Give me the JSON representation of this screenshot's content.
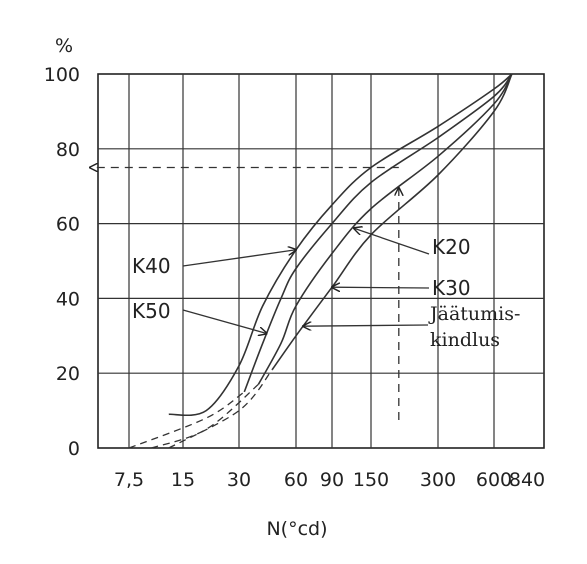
{
  "chart_data": {
    "type": "line",
    "title": "",
    "xlabel": "N(°cd)",
    "ylabel": "%",
    "x_tick_labels": [
      "7,5",
      "15",
      "30",
      "60",
      "90",
      "150",
      "300",
      "600",
      "840"
    ],
    "y_ticks": [
      0,
      20,
      40,
      60,
      80,
      100
    ],
    "ylim": [
      0,
      100
    ],
    "grid": true,
    "series": [
      {
        "name": "K40",
        "solid": [
          [
            12.5,
            9
          ],
          [
            20,
            10
          ],
          [
            30,
            22
          ],
          [
            40,
            38
          ],
          [
            60,
            53
          ],
          [
            90,
            65
          ],
          [
            150,
            75
          ],
          [
            300,
            86
          ],
          [
            600,
            96
          ],
          [
            720,
            100
          ]
        ],
        "dashed": []
      },
      {
        "name": "K50",
        "solid": [
          [
            32,
            15
          ],
          [
            40,
            28
          ],
          [
            50,
            40
          ],
          [
            60,
            48
          ],
          [
            90,
            60
          ],
          [
            150,
            71
          ],
          [
            300,
            83
          ],
          [
            600,
            94
          ],
          [
            720,
            100
          ]
        ],
        "dashed": [
          [
            7.5,
            0
          ],
          [
            20,
            8
          ],
          [
            32,
            15
          ]
        ]
      },
      {
        "name": "K20",
        "solid": [
          [
            38,
            17
          ],
          [
            50,
            28
          ],
          [
            60,
            38
          ],
          [
            90,
            52
          ],
          [
            150,
            64
          ],
          [
            300,
            78
          ],
          [
            600,
            92
          ],
          [
            720,
            100
          ]
        ],
        "dashed": [
          [
            10,
            0
          ],
          [
            20,
            5
          ],
          [
            38,
            17
          ]
        ]
      },
      {
        "name": "K30",
        "solid": [
          [
            45,
            21
          ],
          [
            60,
            30
          ],
          [
            90,
            43
          ],
          [
            150,
            57
          ],
          [
            300,
            73
          ],
          [
            600,
            90
          ],
          [
            720,
            100
          ]
        ],
        "dashed": [
          [
            12.5,
            0
          ],
          [
            30,
            10
          ],
          [
            45,
            21
          ]
        ]
      }
    ],
    "annotations": [
      {
        "id": "k40",
        "lines": [
          "K40"
        ],
        "target_series": "K40",
        "target_x": 60
      },
      {
        "id": "k50",
        "lines": [
          "K50"
        ],
        "target_series": "K50",
        "target_x": 42
      },
      {
        "id": "k20",
        "lines": [
          "K20"
        ],
        "target_series": "K20",
        "target_x": 120
      },
      {
        "id": "k30",
        "lines": [
          "K30"
        ],
        "target_series": "K30",
        "target_x": 90
      },
      {
        "id": "jaatumis",
        "lines": [
          "Jäätumis-",
          "kindlus"
        ],
        "target_series": "K30",
        "target_x": 65
      }
    ],
    "reference_line": {
      "x": 200,
      "y": 75
    }
  }
}
